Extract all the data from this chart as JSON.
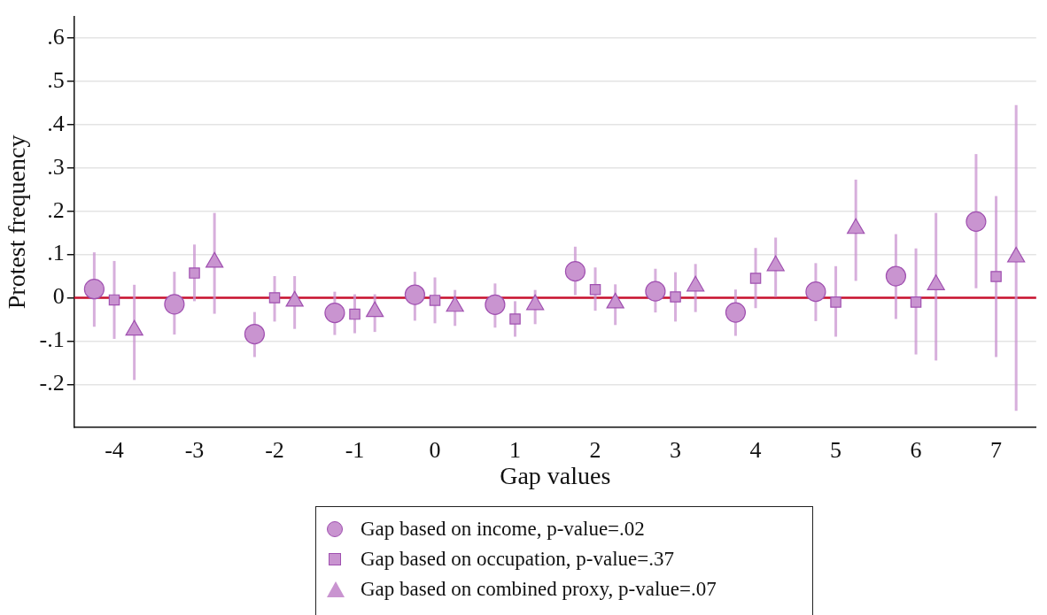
{
  "chart_data": {
    "type": "scatter",
    "xlabel": "Gap values",
    "ylabel": "Protest frequency",
    "xlim": [
      -4.5,
      7.5
    ],
    "xticks": [
      -4,
      -3,
      -2,
      -1,
      0,
      1,
      2,
      3,
      4,
      5,
      6,
      7
    ],
    "ylim": [
      -0.3,
      0.65
    ],
    "yticks": [
      {
        "value": -0.2,
        "label": "-.2"
      },
      {
        "value": -0.1,
        "label": "-.1"
      },
      0,
      {
        "value": 0.1,
        "label": ".1"
      },
      {
        "value": 0.2,
        "label": ".2"
      },
      {
        "value": 0.3,
        "label": ".3"
      },
      {
        "value": 0.4,
        "label": ".4"
      },
      {
        "value": 0.5,
        "label": ".5"
      },
      {
        "value": 0.6,
        "label": ".6"
      }
    ],
    "grid": "y",
    "legend": "bottom",
    "ref_lines": [
      {
        "axis": "y",
        "value": 0,
        "color": "#c8102e"
      }
    ],
    "series": [
      {
        "name": "Gap based on income, p-value=.02",
        "color": "#c994d0",
        "marker": "circle",
        "x": [
          -4.25,
          -3.25,
          -2.25,
          -1.25,
          -0.25,
          0.75,
          1.75,
          2.75,
          3.75,
          4.75,
          5.75,
          6.75
        ],
        "values": [
          0.02,
          -0.015,
          -0.084,
          -0.035,
          0.007,
          -0.016,
          0.061,
          0.015,
          -0.034,
          0.014,
          0.05,
          0.176
        ],
        "errors": [
          [
            -0.067,
            0.105
          ],
          [
            -0.085,
            0.06
          ],
          [
            -0.137,
            -0.033
          ],
          [
            -0.086,
            0.014
          ],
          [
            -0.053,
            0.06
          ],
          [
            -0.069,
            0.033
          ],
          [
            0.006,
            0.118
          ],
          [
            -0.034,
            0.067
          ],
          [
            -0.088,
            0.019
          ],
          [
            -0.054,
            0.08
          ],
          [
            -0.049,
            0.147
          ],
          [
            0.022,
            0.332
          ]
        ]
      },
      {
        "name": "Gap based on occupation, p-value=.37",
        "color": "#c994d0",
        "marker": "square",
        "x": [
          -4,
          -3,
          -2,
          -1,
          0,
          1,
          2,
          3,
          4,
          5,
          6,
          7
        ],
        "values": [
          -0.005,
          0.057,
          0,
          -0.038,
          -0.006,
          -0.049,
          0.019,
          0.002,
          0.045,
          -0.01,
          -0.01,
          0.049
        ],
        "errors": [
          [
            -0.095,
            0.085
          ],
          [
            -0.008,
            0.123
          ],
          [
            -0.055,
            0.05
          ],
          [
            -0.082,
            0.008
          ],
          [
            -0.059,
            0.047
          ],
          [
            -0.09,
            -0.008
          ],
          [
            -0.03,
            0.07
          ],
          [
            -0.055,
            0.059
          ],
          [
            -0.024,
            0.115
          ],
          [
            -0.09,
            0.073
          ],
          [
            -0.131,
            0.114
          ],
          [
            -0.137,
            0.235
          ]
        ]
      },
      {
        "name": "Gap based on combined proxy, p-value=.07",
        "color": "#c994d0",
        "marker": "triangle",
        "x": [
          -3.75,
          -2.75,
          -1.75,
          -0.75,
          0.25,
          1.25,
          2.25,
          3.25,
          4.25,
          5.25,
          6.25,
          7.25
        ],
        "values": [
          -0.075,
          0.082,
          -0.008,
          -0.032,
          -0.02,
          -0.016,
          -0.012,
          0.027,
          0.074,
          0.16,
          0.03,
          0.094
        ],
        "errors": [
          [
            -0.19,
            0.03
          ],
          [
            -0.037,
            0.196
          ],
          [
            -0.072,
            0.05
          ],
          [
            -0.079,
            0.008
          ],
          [
            -0.065,
            0.018
          ],
          [
            -0.061,
            0.018
          ],
          [
            -0.063,
            0.031
          ],
          [
            -0.033,
            0.078
          ],
          [
            0.002,
            0.139
          ],
          [
            0.039,
            0.273
          ],
          [
            -0.145,
            0.196
          ],
          [
            -0.261,
            0.445
          ]
        ]
      }
    ]
  }
}
